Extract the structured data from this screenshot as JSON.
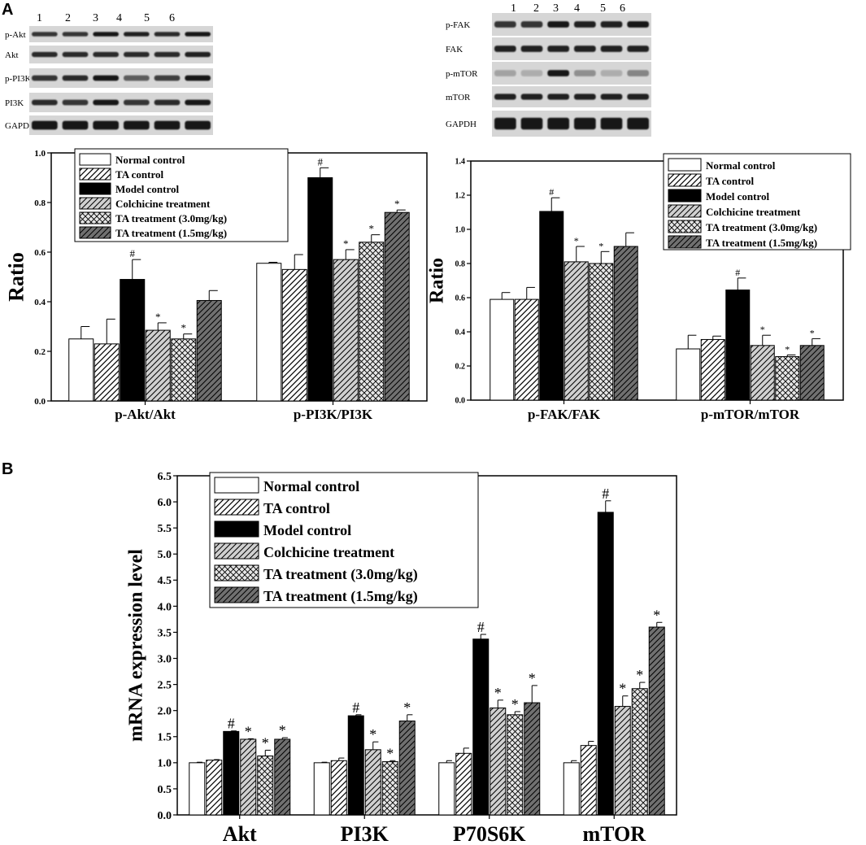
{
  "panels": {
    "A": "A",
    "B": "B"
  },
  "blots": {
    "left": {
      "lanes": [
        "1",
        "2",
        "3",
        "4",
        "5",
        "6"
      ],
      "rows": [
        "p-Akt",
        "Akt",
        "p-PI3K",
        "PI3K",
        "GAPDH"
      ]
    },
    "right": {
      "lanes": [
        "1",
        "2",
        "3",
        "4",
        "5",
        "6"
      ],
      "rows": [
        "p-FAK",
        "FAK",
        "p-mTOR",
        "mTOR",
        "GAPDH"
      ]
    }
  },
  "styles": {
    "colors": {
      "normal": "#ffffff",
      "ta_control": "#ffffff",
      "model": "#000000",
      "colchicine": "#d0d0d0",
      "ta_high": "#e6e6e6",
      "ta_low": "#707070"
    },
    "patterns": [
      "none",
      "diag",
      "none",
      "diag",
      "cross",
      "diag"
    ]
  },
  "chart_data": [
    {
      "id": "A-left",
      "type": "bar",
      "ylabel": "Ratio",
      "ylim": [
        0,
        1.0
      ],
      "yticks": [
        "0.0",
        "0.2",
        "0.4",
        "0.6",
        "0.8",
        "1.0"
      ],
      "legend_position": "top",
      "categories": [
        "p-Akt/Akt",
        "p-PI3K/PI3K"
      ],
      "series": [
        {
          "name": "Normal control",
          "values": [
            0.25,
            0.555
          ],
          "errors": [
            0.05,
            0.004
          ],
          "sig": [
            "",
            ""
          ]
        },
        {
          "name": "TA control",
          "values": [
            0.23,
            0.53
          ],
          "errors": [
            0.1,
            0.06
          ],
          "sig": [
            "",
            ""
          ]
        },
        {
          "name": "Model control",
          "values": [
            0.49,
            0.9
          ],
          "errors": [
            0.08,
            0.04
          ],
          "sig": [
            "#",
            "#"
          ]
        },
        {
          "name": "Colchicine treatment",
          "values": [
            0.285,
            0.57
          ],
          "errors": [
            0.03,
            0.04
          ],
          "sig": [
            "*",
            "*"
          ]
        },
        {
          "name": "TA treatment (3.0mg/kg)",
          "values": [
            0.25,
            0.64
          ],
          "errors": [
            0.02,
            0.03
          ],
          "sig": [
            "*",
            "*"
          ]
        },
        {
          "name": "TA treatment (1.5mg/kg)",
          "values": [
            0.405,
            0.76
          ],
          "errors": [
            0.04,
            0.01
          ],
          "sig": [
            "",
            "*"
          ]
        }
      ]
    },
    {
      "id": "A-right",
      "type": "bar",
      "ylabel": "Ratio",
      "ylim": [
        0,
        1.4
      ],
      "yticks": [
        "0.0",
        "0.2",
        "0.4",
        "0.6",
        "0.8",
        "1.0",
        "1.2",
        "1.4"
      ],
      "legend_position": "top-right",
      "categories": [
        "p-FAK/FAK",
        "p-mTOR/mTOR"
      ],
      "series": [
        {
          "name": "Normal control",
          "values": [
            0.59,
            0.3
          ],
          "errors": [
            0.04,
            0.08
          ],
          "sig": [
            "",
            ""
          ]
        },
        {
          "name": "TA control",
          "values": [
            0.59,
            0.355
          ],
          "errors": [
            0.07,
            0.02
          ],
          "sig": [
            "",
            ""
          ]
        },
        {
          "name": "Model control",
          "values": [
            1.105,
            0.645
          ],
          "errors": [
            0.08,
            0.07
          ],
          "sig": [
            "#",
            "#"
          ]
        },
        {
          "name": "Colchicine treatment",
          "values": [
            0.81,
            0.32
          ],
          "errors": [
            0.09,
            0.06
          ],
          "sig": [
            "*",
            "*"
          ]
        },
        {
          "name": "TA treatment (3.0mg/kg)",
          "values": [
            0.8,
            0.255
          ],
          "errors": [
            0.07,
            0.01
          ],
          "sig": [
            "*",
            "*"
          ]
        },
        {
          "name": "TA treatment (1.5mg/kg)",
          "values": [
            0.9,
            0.32
          ],
          "errors": [
            0.08,
            0.04
          ],
          "sig": [
            "",
            "*"
          ]
        }
      ]
    },
    {
      "id": "B",
      "type": "bar",
      "ylabel": "mRNA expression level",
      "ylim": [
        0,
        6.5
      ],
      "yticks": [
        "0.0",
        "0.5",
        "1.0",
        "1.5",
        "2.0",
        "2.5",
        "3.0",
        "3.5",
        "4.0",
        "4.5",
        "5.0",
        "5.5",
        "6.0",
        "6.5"
      ],
      "legend_position": "top-left",
      "categories": [
        "Akt",
        "PI3K",
        "P70S6K",
        "mTOR"
      ],
      "series": [
        {
          "name": "Normal control",
          "values": [
            1.0,
            1.0,
            1.0,
            1.0
          ],
          "errors": [
            0.01,
            0.01,
            0.04,
            0.04
          ],
          "sig": [
            "",
            "",
            "",
            ""
          ]
        },
        {
          "name": "TA control",
          "values": [
            1.05,
            1.04,
            1.18,
            1.33
          ],
          "errors": [
            0.01,
            0.05,
            0.1,
            0.08
          ],
          "sig": [
            "",
            "",
            "",
            ""
          ]
        },
        {
          "name": "Model control",
          "values": [
            1.6,
            1.9,
            3.37,
            5.8
          ],
          "errors": [
            0.01,
            0.02,
            0.09,
            0.22
          ],
          "sig": [
            "#",
            "#",
            "#",
            "#"
          ]
        },
        {
          "name": "Colchicine treatment",
          "values": [
            1.45,
            1.25,
            2.05,
            2.08
          ],
          "errors": [
            0.01,
            0.15,
            0.15,
            0.2
          ],
          "sig": [
            "*",
            "*",
            "*",
            "*"
          ]
        },
        {
          "name": "TA treatment (3.0mg/kg)",
          "values": [
            1.13,
            1.02,
            1.92,
            2.42
          ],
          "errors": [
            0.11,
            0.02,
            0.06,
            0.12
          ],
          "sig": [
            "*",
            "*",
            "*",
            "*"
          ]
        },
        {
          "name": "TA treatment (1.5mg/kg)",
          "values": [
            1.45,
            1.8,
            2.15,
            3.6
          ],
          "errors": [
            0.03,
            0.12,
            0.33,
            0.09
          ],
          "sig": [
            "*",
            "*",
            "*",
            "*"
          ]
        }
      ]
    }
  ]
}
